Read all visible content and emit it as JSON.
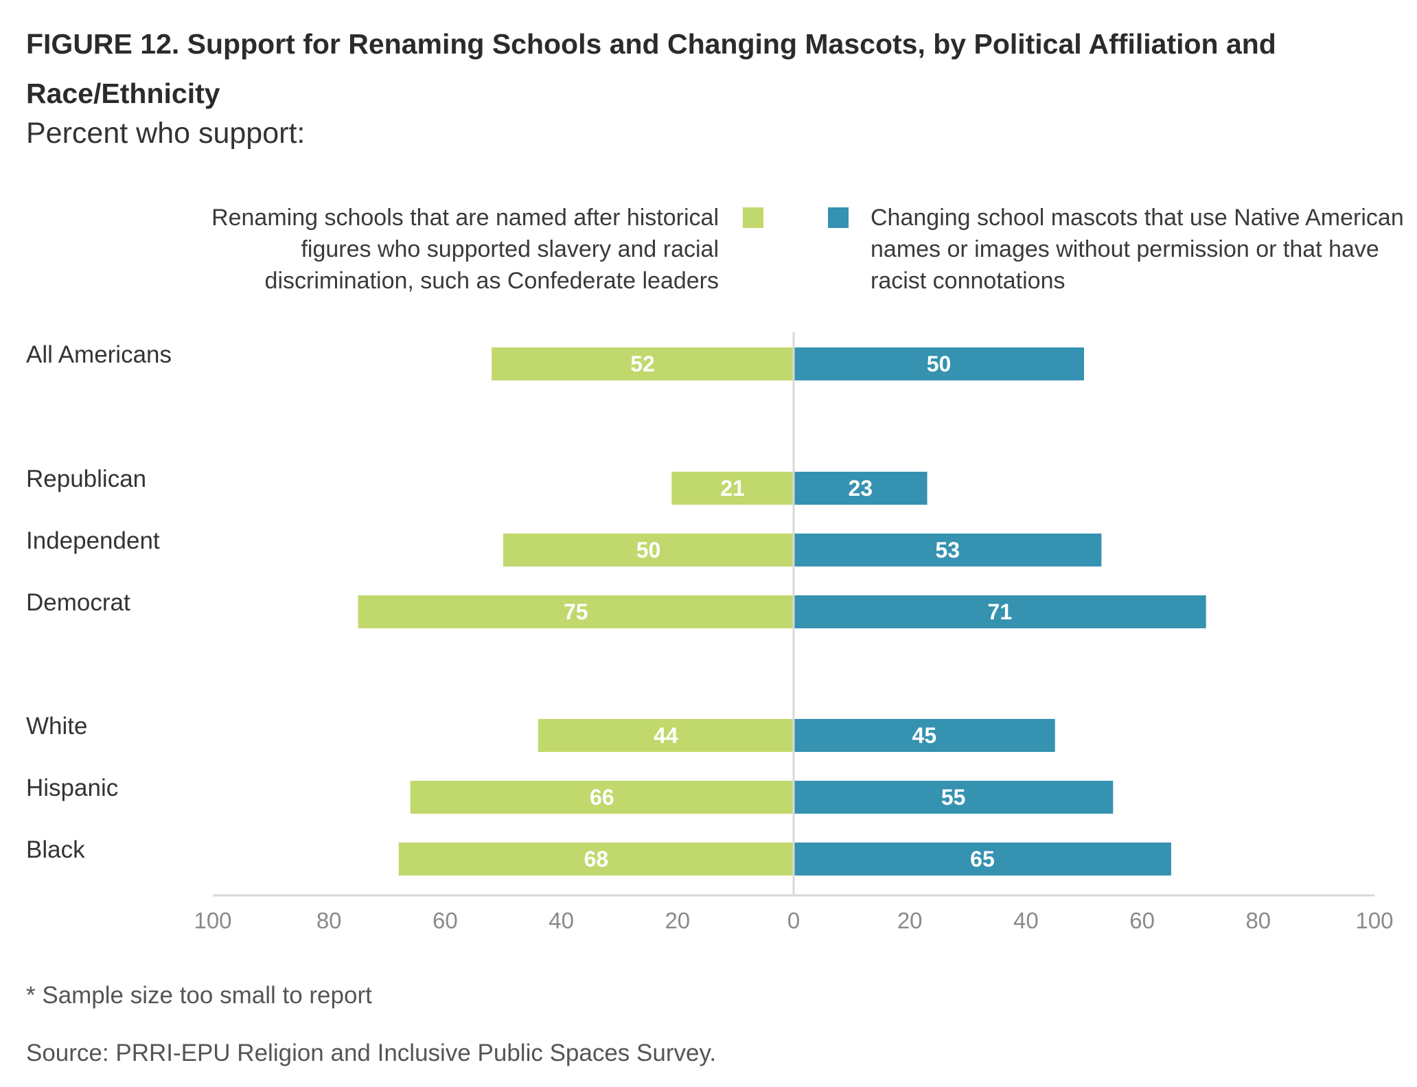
{
  "figure": {
    "title": "FIGURE 12.  Support for Renaming Schools and Changing Mascots, by Political Affiliation and Race/Ethnicity",
    "subtitle": "Percent who support:",
    "note": "* Sample size too small to report",
    "source": "Source: PRRI-EPU Religion and Inclusive Public Spaces Survey."
  },
  "legend": {
    "left": "Renaming schools that are named after historical figures who supported slavery and racial discrimination, such as Confederate leaders",
    "right": "Changing school mascots that use Native American names or images without permission or that have racist connotations"
  },
  "colors": {
    "left": "#c1d86c",
    "right": "#3592b0",
    "axis": "#d8d8d8"
  },
  "chart_data": {
    "type": "bar",
    "orientation": "horizontal-diverging",
    "categories": [
      "All Americans",
      "Republican",
      "Independent",
      "Democrat",
      "White",
      "Hispanic",
      "Black"
    ],
    "groups": [
      [
        "All Americans"
      ],
      [
        "Republican",
        "Independent",
        "Democrat"
      ],
      [
        "White",
        "Hispanic",
        "Black"
      ]
    ],
    "series": [
      {
        "name": "Renaming schools that are named after historical figures who supported slavery and racial discrimination, such as Confederate leaders",
        "side": "left",
        "values": [
          52,
          21,
          50,
          75,
          44,
          66,
          68
        ]
      },
      {
        "name": "Changing school mascots that use Native American names or images without permission or that have racist connotations",
        "side": "right",
        "values": [
          50,
          23,
          53,
          71,
          45,
          55,
          65
        ]
      }
    ],
    "xlim": [
      -100,
      100
    ],
    "ticks": [
      "100",
      "80",
      "60",
      "40",
      "20",
      "0",
      "20",
      "40",
      "60",
      "80",
      "100"
    ],
    "legend_position": "top",
    "grid": false
  }
}
